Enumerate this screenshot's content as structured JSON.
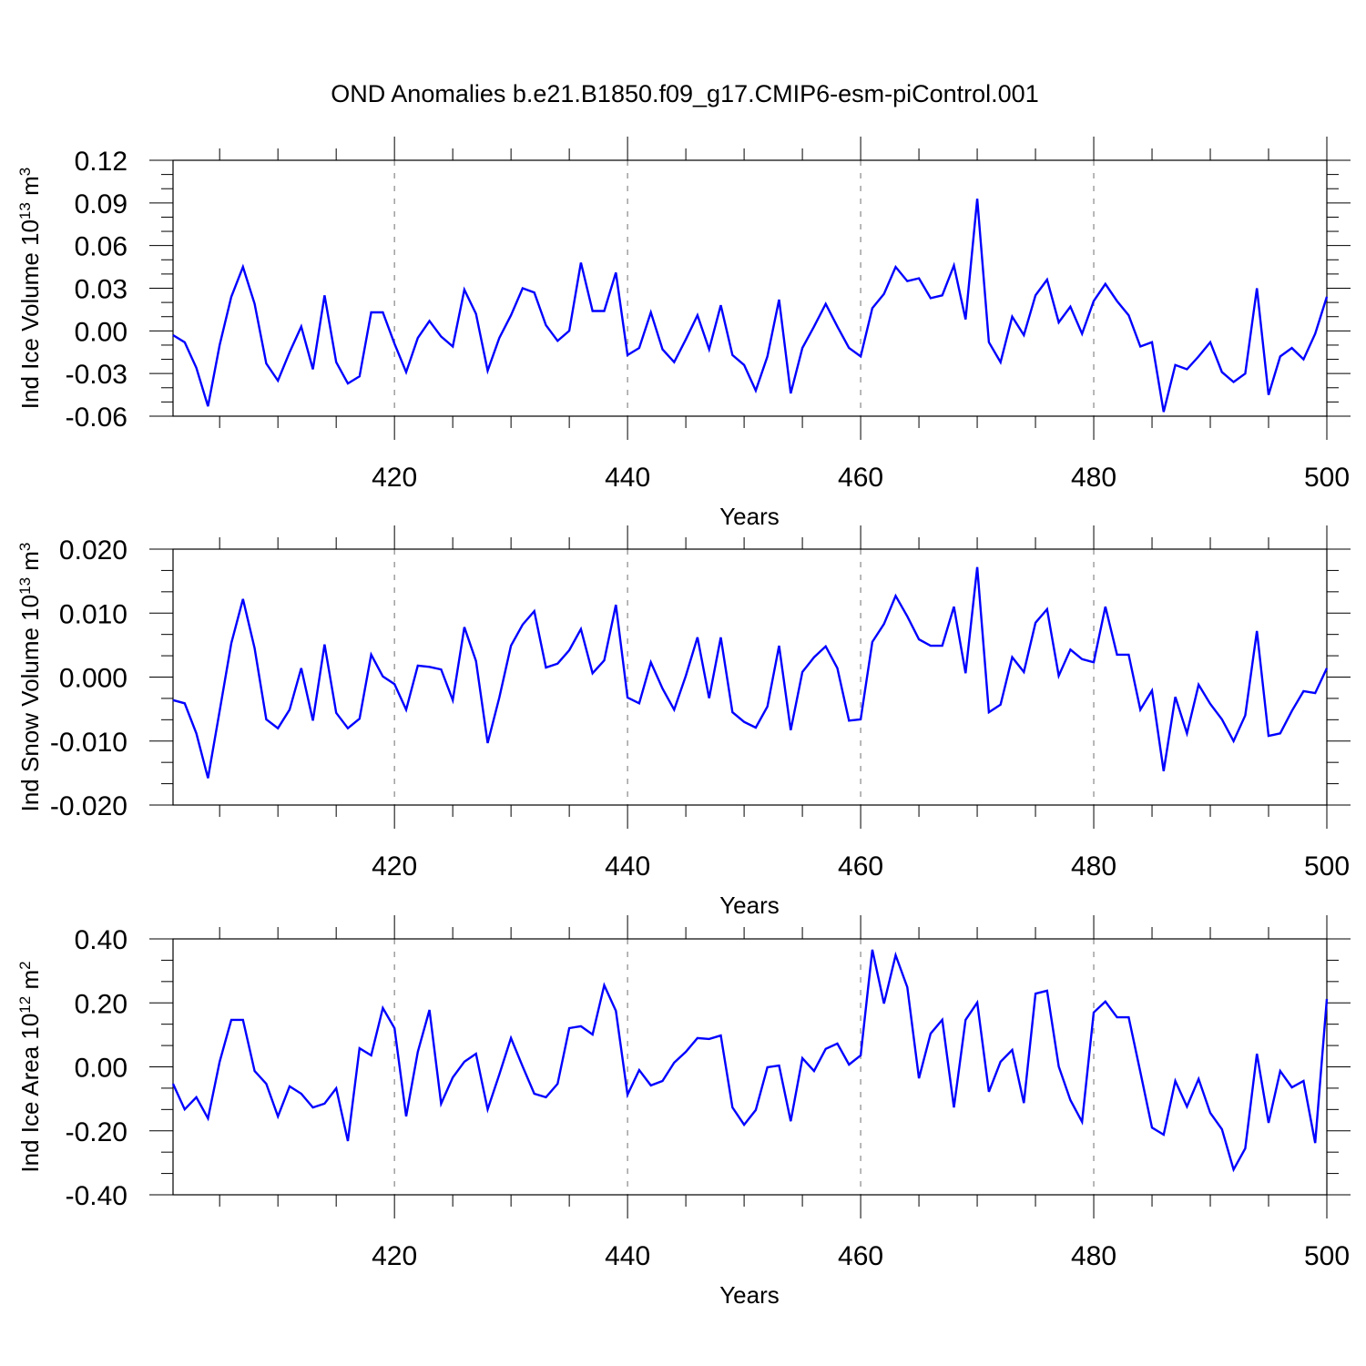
{
  "chart_data": [
    {
      "type": "line",
      "title": "OND Anomalies b.e21.B1850.f09_g17.CMIP6-esm-piControl.001",
      "xlabel": "Years",
      "ylabel": {
        "text": "Ind Ice Volume 10",
        "exp": "13",
        "unit": " m",
        "unit_exp": "3"
      },
      "xlim": [
        401,
        500
      ],
      "ylim": [
        -0.06,
        0.12
      ],
      "xticks": [
        420,
        440,
        460,
        480,
        500
      ],
      "yticks": [
        -0.06,
        -0.03,
        0.0,
        0.03,
        0.06,
        0.09,
        0.12
      ],
      "ytick_labels": [
        "-0.06",
        "-0.03",
        "0.00",
        "0.03",
        "0.06",
        "0.09",
        "0.12"
      ],
      "grid": "vertical dashed at major x ticks",
      "color": "#0000ff",
      "x_start": 401,
      "values": [
        -0.003,
        -0.008,
        -0.026,
        -0.053,
        -0.01,
        0.024,
        0.045,
        0.019,
        -0.023,
        -0.035,
        -0.015,
        0.003,
        -0.027,
        0.025,
        -0.022,
        -0.037,
        -0.032,
        0.013,
        0.013,
        -0.009,
        -0.029,
        -0.005,
        0.007,
        -0.004,
        -0.011,
        0.029,
        0.012,
        -0.028,
        -0.005,
        0.011,
        0.03,
        0.027,
        0.004,
        -0.007,
        0.0,
        0.048,
        0.014,
        0.014,
        0.041,
        -0.017,
        -0.012,
        0.013,
        -0.013,
        -0.022,
        -0.006,
        0.011,
        -0.013,
        0.018,
        -0.017,
        -0.024,
        -0.042,
        -0.018,
        0.022,
        -0.044,
        -0.012,
        0.003,
        0.019,
        0.003,
        -0.012,
        -0.018,
        0.016,
        0.026,
        0.045,
        0.035,
        0.037,
        0.023,
        0.025,
        0.046,
        0.008,
        0.093,
        -0.008,
        -0.022,
        0.01,
        -0.003,
        0.025,
        0.036,
        0.006,
        0.017,
        -0.002,
        0.021,
        0.033,
        0.021,
        0.011,
        -0.011,
        -0.008,
        -0.057,
        -0.024,
        -0.027,
        -0.018,
        -0.008,
        -0.029,
        -0.036,
        -0.03,
        0.03,
        -0.045,
        -0.018,
        -0.012,
        -0.02,
        -0.002,
        0.024
      ]
    },
    {
      "type": "line",
      "xlabel": "Years",
      "ylabel": {
        "text": "Ind Snow Volume 10",
        "exp": "13",
        "unit": " m",
        "unit_exp": "3"
      },
      "xlim": [
        401,
        500
      ],
      "ylim": [
        -0.02,
        0.02
      ],
      "xticks": [
        420,
        440,
        460,
        480,
        500
      ],
      "yticks": [
        -0.02,
        -0.01,
        0.0,
        0.01,
        0.02
      ],
      "ytick_labels": [
        "-0.020",
        "-0.010",
        "0.000",
        "0.010",
        "0.020"
      ],
      "grid": "vertical dashed at major x ticks",
      "color": "#0000ff",
      "x_start": 401,
      "values": [
        -0.0036,
        -0.0041,
        -0.0088,
        -0.0158,
        -0.0053,
        0.0053,
        0.0122,
        0.0045,
        -0.0066,
        -0.008,
        -0.0051,
        0.0014,
        -0.0068,
        0.0051,
        -0.0056,
        -0.008,
        -0.0065,
        0.0035,
        0.0001,
        -0.0011,
        -0.0051,
        0.0018,
        0.0016,
        0.0012,
        -0.0036,
        0.0078,
        0.0025,
        -0.0103,
        -0.0032,
        0.0049,
        0.0082,
        0.0103,
        0.0015,
        0.0021,
        0.0042,
        0.0075,
        0.0006,
        0.0026,
        0.0113,
        -0.0032,
        -0.0041,
        0.0023,
        -0.0018,
        -0.0051,
        0.0002,
        0.0062,
        -0.0033,
        0.0062,
        -0.0055,
        -0.007,
        -0.0079,
        -0.0046,
        0.0049,
        -0.0083,
        0.0008,
        0.0031,
        0.0048,
        0.0014,
        -0.0068,
        -0.0066,
        0.0055,
        0.0083,
        0.0127,
        0.0095,
        0.0059,
        0.0049,
        0.0049,
        0.011,
        0.0006,
        0.0172,
        -0.0055,
        -0.0043,
        0.0031,
        0.0008,
        0.0085,
        0.0106,
        0.0002,
        0.0043,
        0.0028,
        0.0023,
        0.011,
        0.0035,
        0.0035,
        -0.0051,
        -0.0021,
        -0.0147,
        -0.0031,
        -0.0088,
        -0.0012,
        -0.0042,
        -0.0066,
        -0.01,
        -0.006,
        0.0072,
        -0.0092,
        -0.0088,
        -0.0053,
        -0.0022,
        -0.0025,
        0.0014
      ]
    },
    {
      "type": "line",
      "xlabel": "Years",
      "ylabel": {
        "text": "Ind Ice Area 10",
        "exp": "12",
        "unit": " m",
        "unit_exp": "2"
      },
      "xlim": [
        401,
        500
      ],
      "ylim": [
        -0.4,
        0.4
      ],
      "xticks": [
        420,
        440,
        460,
        480,
        500
      ],
      "yticks": [
        -0.4,
        -0.2,
        0.0,
        0.2,
        0.4
      ],
      "ytick_labels": [
        "-0.40",
        "-0.20",
        "0.00",
        "0.20",
        "0.40"
      ],
      "grid": "vertical dashed at major x ticks",
      "color": "#0000ff",
      "x_start": 401,
      "values": [
        -0.053,
        -0.133,
        -0.095,
        -0.161,
        0.016,
        0.147,
        0.147,
        -0.013,
        -0.053,
        -0.155,
        -0.061,
        -0.084,
        -0.127,
        -0.115,
        -0.067,
        -0.232,
        0.058,
        0.036,
        0.184,
        0.121,
        -0.155,
        0.047,
        0.178,
        -0.115,
        -0.033,
        0.016,
        0.041,
        -0.133,
        -0.024,
        0.09,
        0.001,
        -0.084,
        -0.095,
        -0.053,
        0.121,
        0.127,
        0.101,
        0.255,
        0.175,
        -0.087,
        -0.01,
        -0.058,
        -0.044,
        0.013,
        0.047,
        0.09,
        0.087,
        0.098,
        -0.127,
        -0.181,
        -0.135,
        -0.001,
        0.004,
        -0.17,
        0.027,
        -0.013,
        0.056,
        0.073,
        0.007,
        0.036,
        0.366,
        0.198,
        0.349,
        0.249,
        -0.036,
        0.104,
        0.147,
        -0.127,
        0.147,
        0.201,
        -0.078,
        0.016,
        0.053,
        -0.113,
        0.229,
        0.238,
        0.001,
        -0.104,
        -0.172,
        0.17,
        0.204,
        0.155,
        0.155,
        -0.016,
        -0.19,
        -0.212,
        -0.044,
        -0.124,
        -0.038,
        -0.144,
        -0.195,
        -0.321,
        -0.255,
        0.041,
        -0.175,
        -0.013,
        -0.064,
        -0.044,
        -0.238,
        0.212
      ]
    }
  ]
}
